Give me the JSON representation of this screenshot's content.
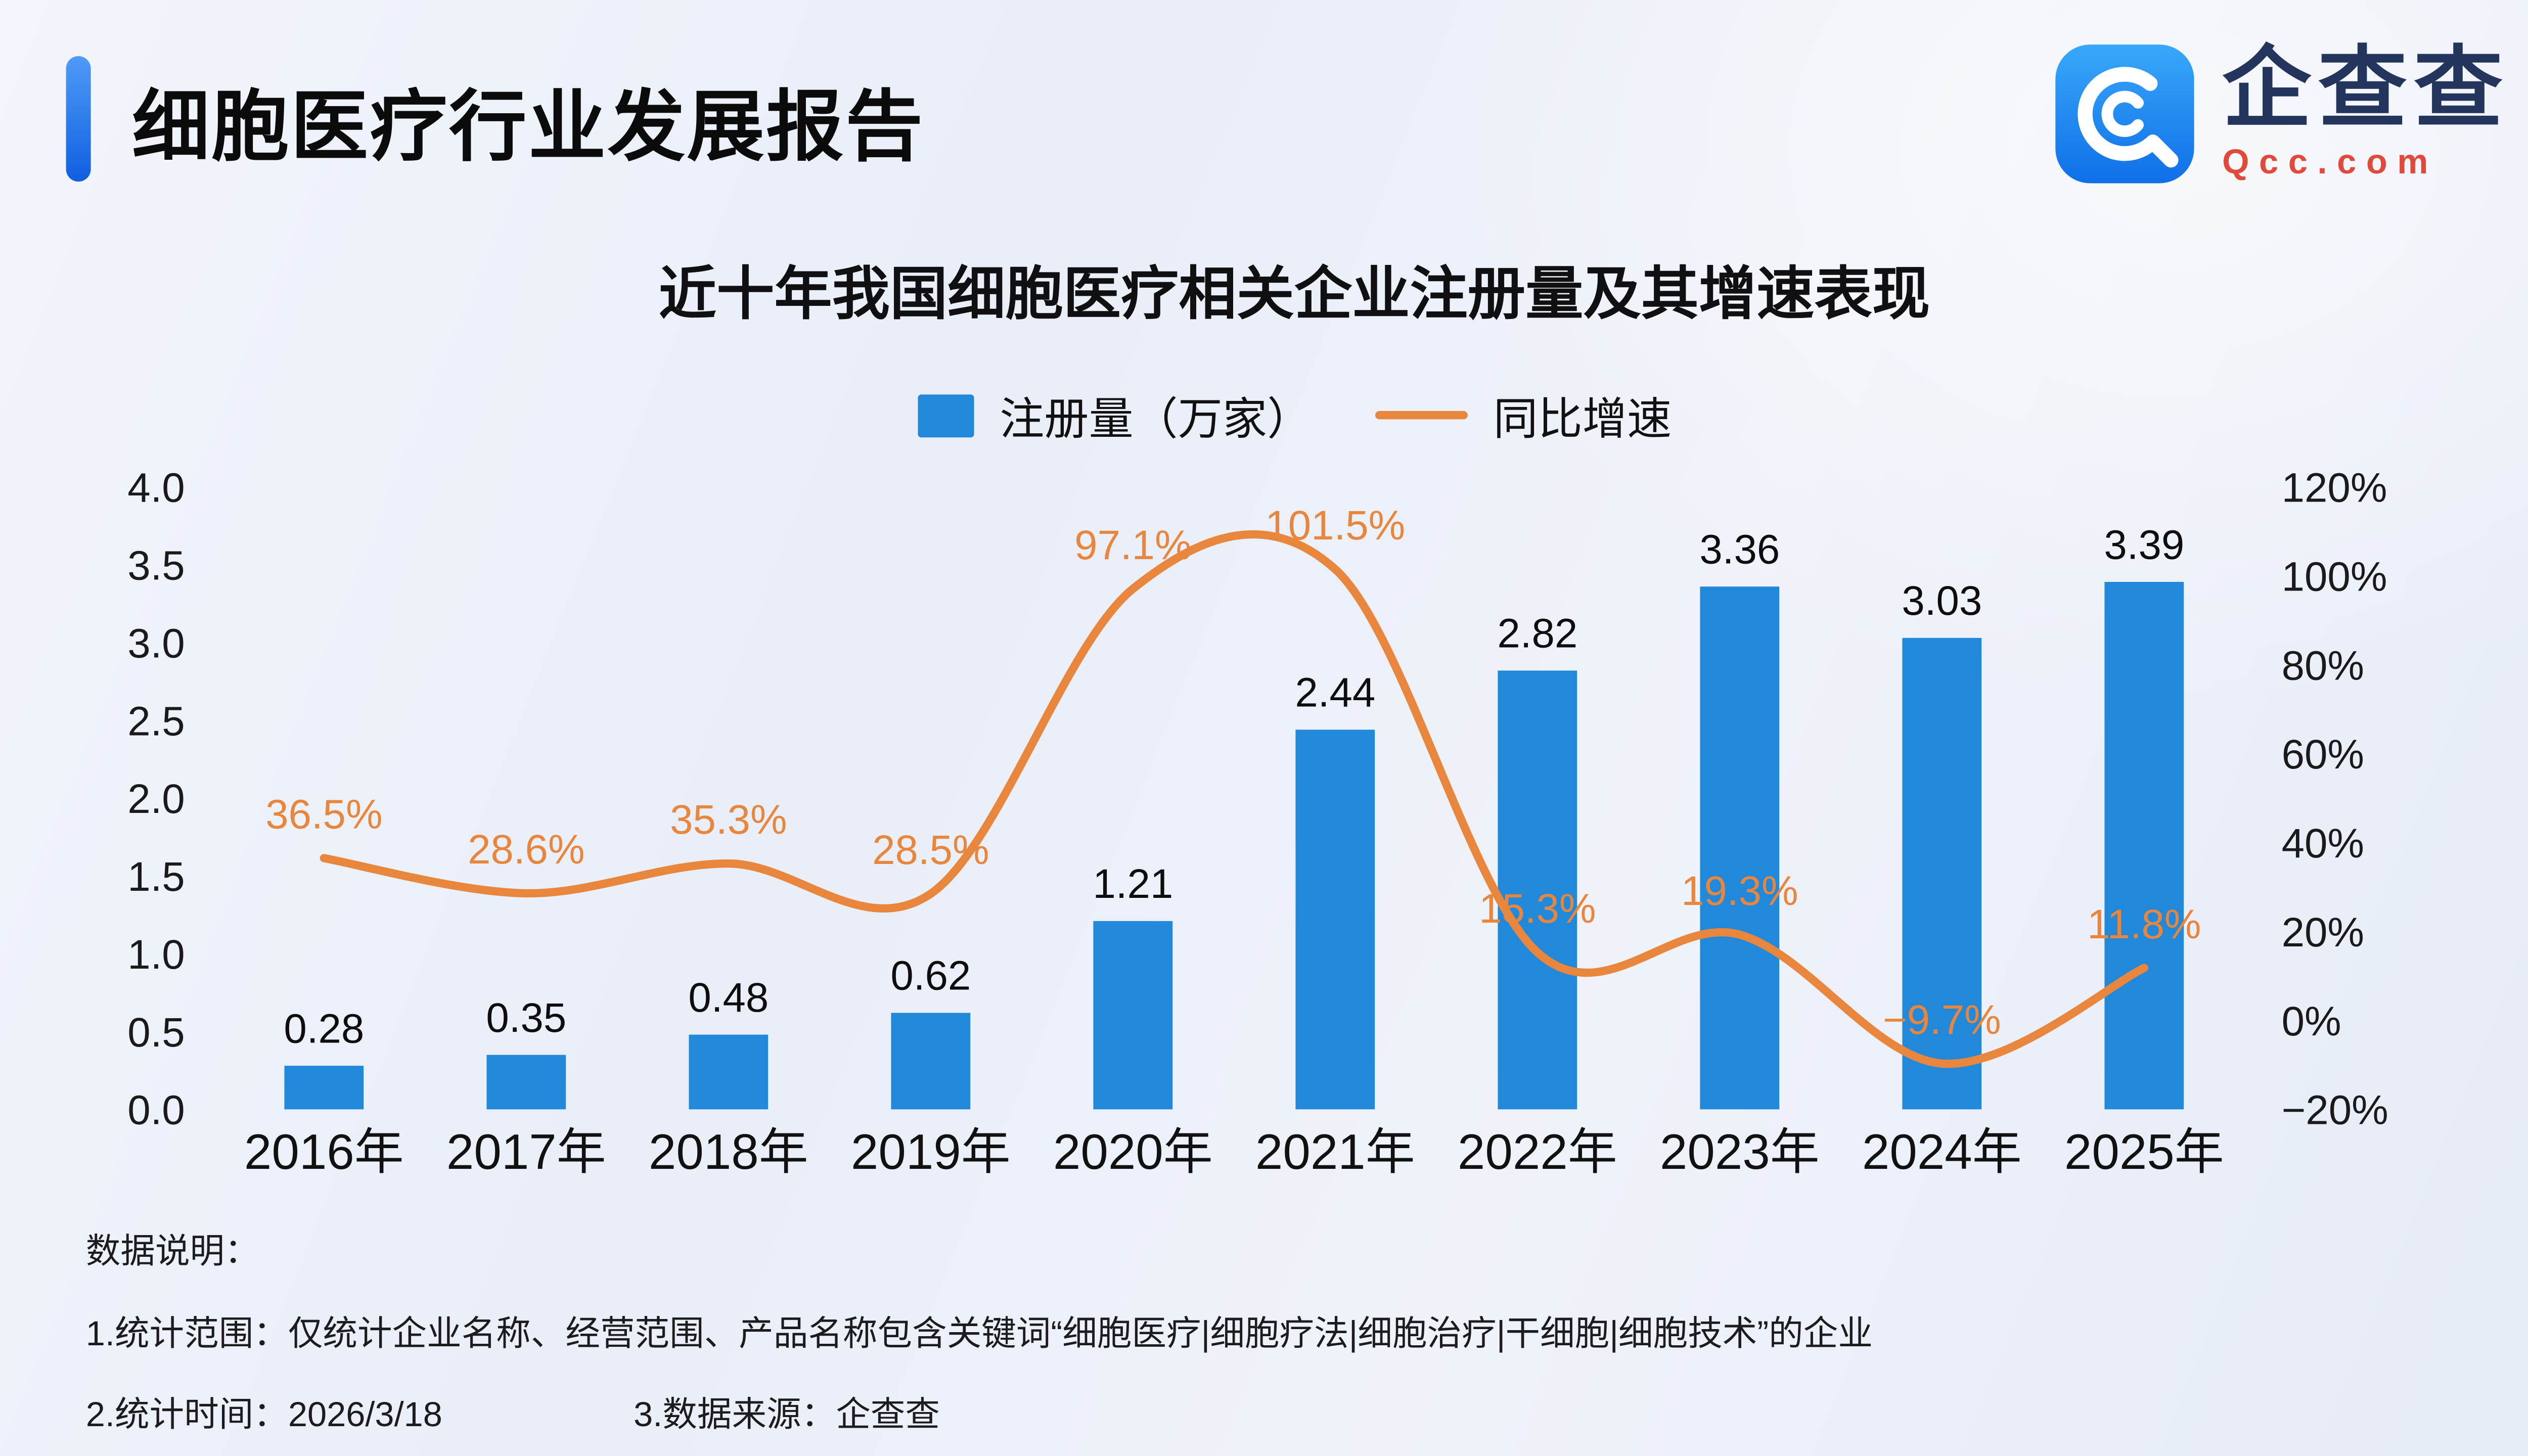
{
  "header": {
    "title": "细胞医疗行业发展报告",
    "logo": {
      "name_cn": "企查查",
      "name_en": "Qcc.com"
    }
  },
  "chart_data": {
    "type": "bar+line",
    "title": "近十年我国细胞医疗相关企业注册量及其增速表现",
    "grid": false,
    "legend_position": "top",
    "categories": [
      "2016年",
      "2017年",
      "2018年",
      "2019年",
      "2020年",
      "2021年",
      "2022年",
      "2023年",
      "2024年",
      "2025年"
    ],
    "series": [
      {
        "name": "注册量（万家）",
        "type": "bar",
        "color": "#2288d9",
        "values": [
          0.28,
          0.35,
          0.48,
          0.62,
          1.21,
          2.44,
          2.82,
          3.36,
          3.03,
          3.39
        ],
        "value_labels": [
          "0.28",
          "0.35",
          "0.48",
          "0.62",
          "1.21",
          "2.44",
          "2.82",
          "3.36",
          "3.03",
          "3.39"
        ]
      },
      {
        "name": "同比增速",
        "type": "line",
        "color": "#e8863e",
        "values": [
          36.5,
          28.6,
          35.3,
          28.5,
          97.1,
          101.5,
          15.3,
          19.3,
          -9.7,
          11.8
        ],
        "value_labels": [
          "36.5%",
          "28.6%",
          "35.3%",
          "28.5%",
          "97.1%",
          "101.5%",
          "15.3%",
          "19.3%",
          "−9.7%",
          "11.8%"
        ]
      }
    ],
    "left_axis": {
      "min": 0,
      "max": 4,
      "step": 0.5,
      "ticks": [
        "0.0",
        "0.5",
        "1.0",
        "1.5",
        "2.0",
        "2.5",
        "3.0",
        "3.5",
        "4.0"
      ]
    },
    "right_axis": {
      "min": -20,
      "max": 120,
      "step": 20,
      "ticks": [
        "−20%",
        "0%",
        "20%",
        "40%",
        "60%",
        "80%",
        "100%",
        "120%"
      ]
    }
  },
  "footer": {
    "heading": "数据说明：",
    "line1": "1.统计范围：仅统计企业名称、经营范围、产品名称包含关键词“细胞医疗|细胞疗法|细胞治疗|干细胞|细胞技术”的企业",
    "line2": "2.统计时间：2026/3/18",
    "line3": "3.数据来源：企查查"
  }
}
